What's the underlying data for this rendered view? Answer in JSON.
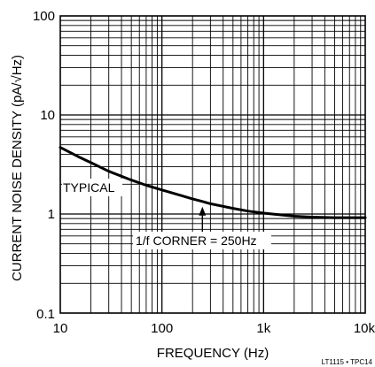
{
  "chart_data": {
    "type": "line",
    "x_scale": "log",
    "y_scale": "log",
    "xlim": [
      10,
      10000
    ],
    "ylim": [
      0.1,
      100
    ],
    "grid": true,
    "xlabel": "FREQUENCY (Hz)",
    "ylabel": "CURRENT NOISE DENSITY (pA/√Hz)",
    "x_ticks": [
      {
        "value": 10,
        "label": "10"
      },
      {
        "value": 100,
        "label": "100"
      },
      {
        "value": 1000,
        "label": "1k"
      },
      {
        "value": 10000,
        "label": "10k"
      }
    ],
    "y_ticks": [
      {
        "value": 100,
        "label": "100"
      },
      {
        "value": 10,
        "label": "10"
      },
      {
        "value": 1,
        "label": "1"
      },
      {
        "value": 0.1,
        "label": "0.1"
      }
    ],
    "series": [
      {
        "name": "TYPICAL",
        "x": [
          10,
          15,
          20,
          30,
          50,
          70,
          100,
          150,
          200,
          250,
          300,
          500,
          700,
          1000,
          2000,
          3000,
          5000,
          10000
        ],
        "y": [
          4.7,
          3.8,
          3.3,
          2.7,
          2.2,
          1.95,
          1.75,
          1.55,
          1.42,
          1.34,
          1.27,
          1.14,
          1.07,
          1.02,
          0.95,
          0.93,
          0.92,
          0.92
        ]
      }
    ],
    "annotations": [
      {
        "text": "TYPICAL"
      },
      {
        "text": "1/f CORNER = 250Hz",
        "x": 250
      }
    ]
  },
  "figure_code": "LT1115 • TPC14"
}
